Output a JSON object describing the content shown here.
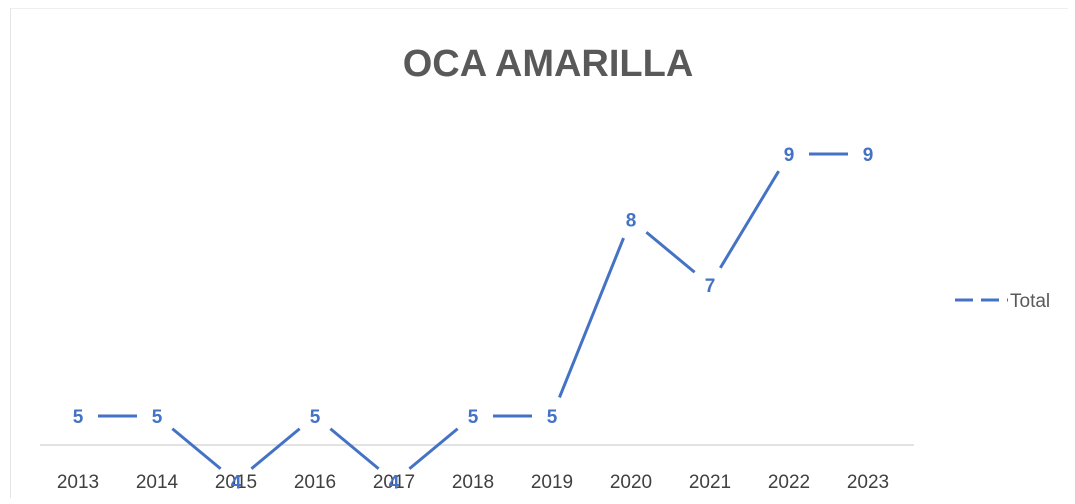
{
  "chart_data": {
    "type": "line",
    "title": "OCA AMARILLA",
    "xlabel": "",
    "ylabel": "",
    "categories": [
      "2013",
      "2014",
      "2015",
      "2016",
      "2017",
      "2018",
      "2019",
      "2020",
      "2021",
      "2022",
      "2023"
    ],
    "series": [
      {
        "name": "Total",
        "values": [
          5,
          5,
          4,
          5,
          4,
          5,
          5,
          8,
          7,
          9,
          9
        ],
        "color": "#4472c4",
        "dash": "dashed"
      }
    ],
    "ylim": [
      0,
      10
    ],
    "grid": false,
    "legend": "right",
    "data_labels": true
  }
}
